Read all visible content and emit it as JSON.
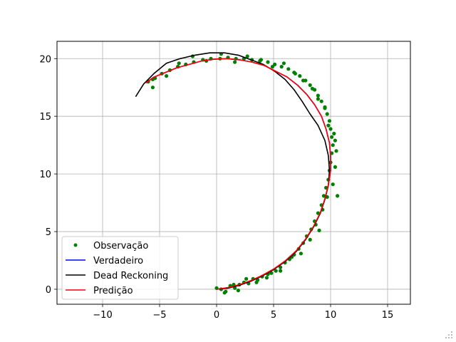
{
  "chart_data": {
    "type": "scatter",
    "title": "",
    "xlabel": "",
    "ylabel": "",
    "xlim": [
      -14.0,
      17.0
    ],
    "ylim": [
      -1.3,
      21.5
    ],
    "xticks": [
      -10,
      -5,
      0,
      5,
      10,
      15
    ],
    "yticks": [
      0,
      5,
      10,
      15,
      20
    ],
    "grid": true,
    "legend_position": "lower-left",
    "series": [
      {
        "name": "Observação",
        "kind": "scatter",
        "color": "#008000",
        "x": [
          0.0,
          0.4,
          0.8,
          1.2,
          1.6,
          2.0,
          2.4,
          2.8,
          3.2,
          3.6,
          4.0,
          4.4,
          4.8,
          5.2,
          5.6,
          6.0,
          6.4,
          6.8,
          7.2,
          7.6,
          7.9,
          8.3,
          8.6,
          8.9,
          9.2,
          9.4,
          9.6,
          9.8,
          9.9,
          10.0,
          10.1,
          10.2,
          10.1,
          10.0,
          9.9,
          9.7,
          9.5,
          9.2,
          8.9,
          8.6,
          8.2,
          7.8,
          7.3,
          6.8,
          6.3,
          5.7,
          5.1,
          4.5,
          3.8,
          3.1,
          2.4,
          1.7,
          1.0,
          0.3,
          -0.5,
          -1.2,
          -2.0,
          -2.7,
          -3.4,
          -4.1,
          -4.8,
          -5.4,
          -6.0,
          0.7,
          1.5,
          2.6,
          3.5,
          4.5,
          5.6,
          6.6,
          7.4,
          8.2,
          8.7,
          9.3,
          9.7,
          10.2,
          10.4,
          10.5,
          10.3,
          10.4,
          9.8,
          9.5,
          8.9,
          8.4,
          7.6,
          6.9,
          5.9,
          4.9,
          3.9,
          2.7,
          1.6,
          0.4,
          -0.9,
          -2.1,
          -3.3,
          -4.4,
          -5.6,
          -5.6,
          1.9,
          9.0,
          10.6
        ],
        "y": [
          0.1,
          0.0,
          -0.2,
          0.3,
          0.1,
          0.4,
          0.6,
          0.5,
          0.9,
          0.8,
          1.1,
          1.0,
          1.4,
          1.6,
          1.9,
          2.3,
          2.6,
          3.0,
          3.5,
          4.0,
          4.6,
          5.2,
          5.9,
          6.6,
          7.3,
          8.1,
          8.8,
          9.5,
          10.3,
          11.0,
          11.8,
          12.5,
          13.2,
          13.9,
          14.6,
          15.2,
          15.8,
          16.3,
          16.8,
          17.3,
          17.7,
          18.1,
          18.5,
          18.8,
          19.1,
          19.3,
          19.5,
          19.7,
          19.8,
          19.9,
          20.0,
          20.0,
          20.1,
          20.0,
          20.0,
          19.9,
          19.7,
          19.5,
          19.3,
          19.0,
          18.7,
          18.3,
          18.0,
          -0.3,
          0.4,
          0.9,
          0.6,
          1.3,
          1.6,
          2.8,
          3.1,
          4.3,
          5.6,
          6.9,
          8.0,
          9.1,
          10.6,
          12.0,
          13.5,
          12.9,
          14.2,
          15.7,
          16.5,
          17.4,
          18.1,
          18.7,
          19.6,
          19.3,
          19.9,
          20.2,
          19.7,
          20.4,
          19.8,
          20.2,
          19.6,
          18.5,
          18.2,
          17.5,
          -0.1,
          5.1,
          8.1
        ]
      },
      {
        "name": "Verdadeiro",
        "kind": "line",
        "color": "#0000ff",
        "x": [
          0.0,
          1.0,
          2.0,
          3.0,
          4.0,
          5.0,
          6.0,
          7.0,
          7.8,
          8.5,
          9.1,
          9.5,
          9.8,
          10.0,
          10.0,
          9.9,
          9.6,
          9.2,
          8.6,
          7.9,
          7.1,
          6.2,
          5.2,
          4.2,
          3.1,
          2.0,
          0.9,
          -0.2,
          -1.3,
          -2.4,
          -3.5,
          -4.5,
          -5.5,
          -6.2
        ],
        "y": [
          0.0,
          0.1,
          0.35,
          0.7,
          1.15,
          1.7,
          2.4,
          3.3,
          4.3,
          5.4,
          6.6,
          7.8,
          9.0,
          10.3,
          11.5,
          12.7,
          13.9,
          15.0,
          16.0,
          16.9,
          17.7,
          18.4,
          18.9,
          19.4,
          19.7,
          19.9,
          20.0,
          19.95,
          19.8,
          19.5,
          19.2,
          18.8,
          18.4,
          17.9
        ]
      },
      {
        "name": "Dead Reckoning",
        "kind": "line",
        "color": "#000000",
        "x": [
          0.0,
          1.0,
          2.0,
          3.0,
          4.0,
          5.0,
          6.0,
          7.0,
          7.8,
          8.5,
          9.1,
          9.5,
          9.8,
          9.9,
          9.8,
          9.5,
          8.9,
          8.2,
          7.5,
          6.8,
          6.0,
          5.1,
          4.1,
          3.0,
          1.9,
          0.7,
          -0.6,
          -1.9,
          -3.2,
          -4.4,
          -5.5,
          -6.4,
          -7.1
        ],
        "y": [
          0.0,
          0.1,
          0.35,
          0.7,
          1.15,
          1.7,
          2.4,
          3.3,
          4.3,
          5.4,
          6.6,
          7.8,
          9.0,
          10.3,
          11.6,
          12.9,
          14.2,
          15.2,
          16.3,
          17.3,
          18.2,
          18.9,
          19.5,
          19.9,
          20.3,
          20.5,
          20.5,
          20.3,
          20.0,
          19.6,
          18.7,
          17.8,
          16.7
        ]
      },
      {
        "name": "Predição",
        "kind": "line",
        "color": "#ff0000",
        "x": [
          0.0,
          1.0,
          2.0,
          3.0,
          4.0,
          5.0,
          6.0,
          7.0,
          7.8,
          8.5,
          9.1,
          9.5,
          9.8,
          10.0,
          10.0,
          9.9,
          9.6,
          9.2,
          8.6,
          7.9,
          7.1,
          6.2,
          5.2,
          4.2,
          3.1,
          2.0,
          0.9,
          -0.2,
          -1.3,
          -2.4,
          -3.5,
          -4.5,
          -5.5,
          -6.2
        ],
        "y": [
          0.0,
          0.15,
          0.4,
          0.75,
          1.2,
          1.75,
          2.45,
          3.35,
          4.35,
          5.45,
          6.65,
          7.85,
          9.05,
          10.3,
          11.5,
          12.7,
          13.9,
          15.0,
          16.0,
          16.9,
          17.7,
          18.4,
          18.9,
          19.4,
          19.7,
          19.9,
          20.0,
          19.95,
          19.8,
          19.5,
          19.2,
          18.8,
          18.4,
          17.9
        ]
      }
    ]
  }
}
